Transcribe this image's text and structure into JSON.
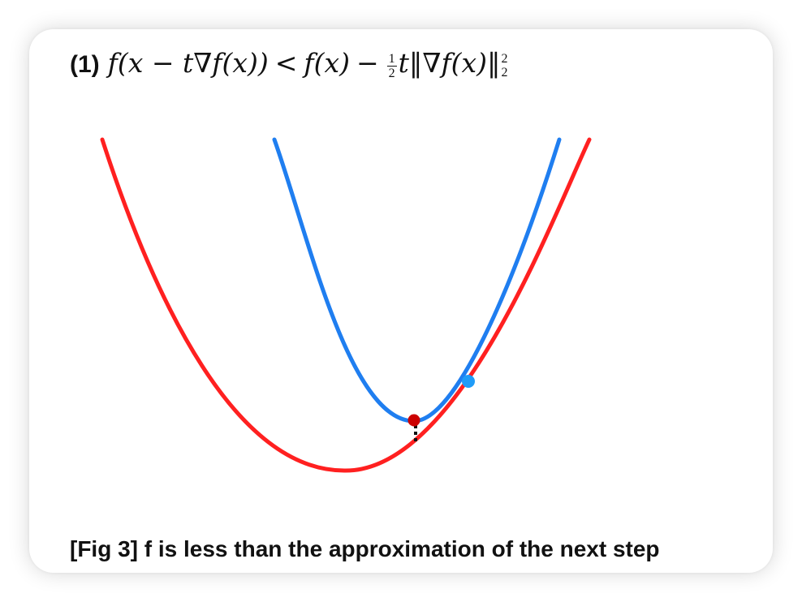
{
  "formula": {
    "tag": "(1)",
    "lhs_open": "f(x − t∇f(x))",
    "relation": "<",
    "rhs_first": "f(x)",
    "minus": "−",
    "half_num": "1",
    "half_den": "2",
    "rhs_tail": "t‖∇f(x)‖",
    "norm_sup": "2",
    "norm_sub": "2"
  },
  "caption": "[Fig 3] f is less than the approximation of the next step",
  "colors": {
    "function_curve": "#ff2020",
    "approximation_curve": "#1f7ef0",
    "current_point": "#1f9cf8",
    "next_point": "#cc0000",
    "gap_marker": "#111111"
  },
  "icons": {
    "current_point": "dot-marker-blue",
    "next_point": "dot-marker-red"
  }
}
